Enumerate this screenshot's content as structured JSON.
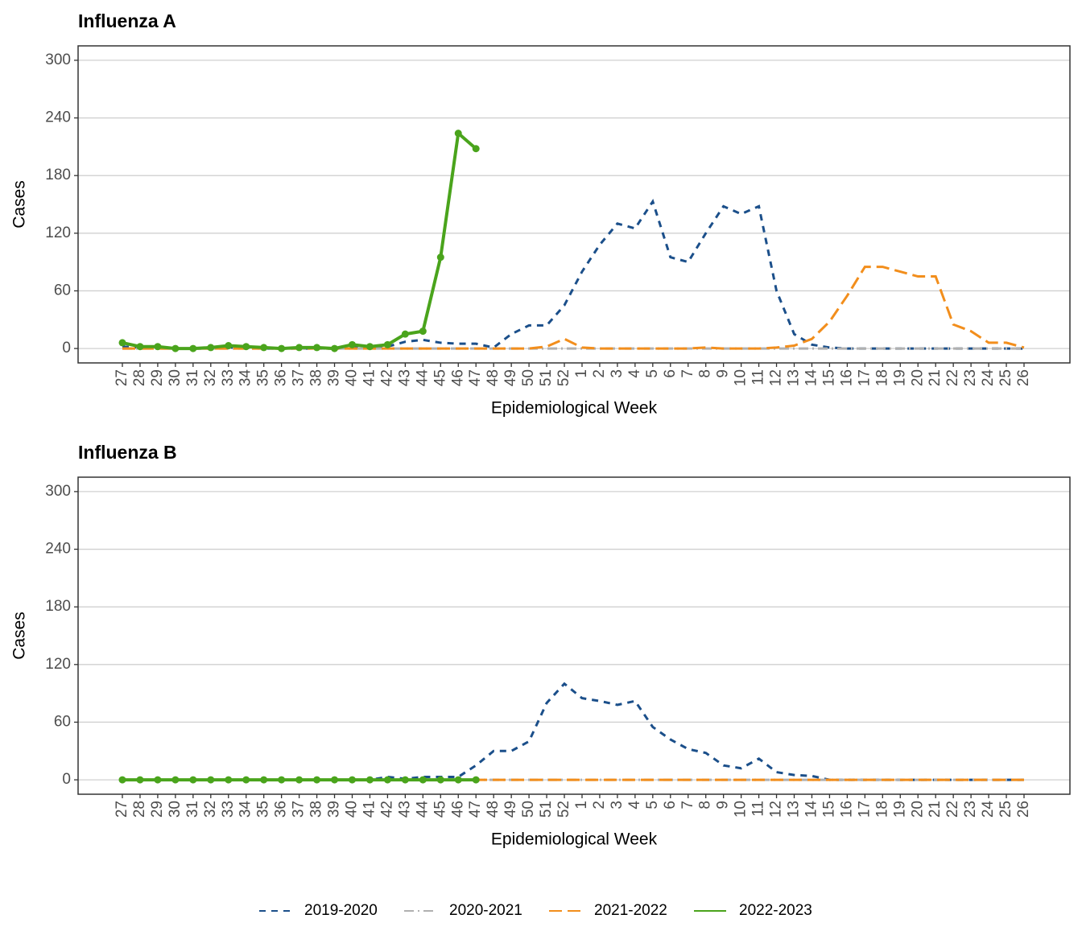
{
  "chart_data": [
    {
      "type": "line",
      "title": "Influenza A",
      "x_label": "Epidemiological Week",
      "y_label": "Cases",
      "categories": [
        "27",
        "28",
        "29",
        "30",
        "31",
        "32",
        "33",
        "34",
        "35",
        "36",
        "37",
        "38",
        "39",
        "40",
        "41",
        "42",
        "43",
        "44",
        "45",
        "46",
        "47",
        "48",
        "49",
        "50",
        "51",
        "52",
        "1",
        "2",
        "3",
        "4",
        "5",
        "6",
        "7",
        "8",
        "9",
        "10",
        "11",
        "12",
        "13",
        "14",
        "15",
        "16",
        "17",
        "18",
        "19",
        "20",
        "21",
        "22",
        "23",
        "24",
        "25",
        "26"
      ],
      "ylim": [
        -15,
        315
      ],
      "yticks": [
        0,
        60,
        120,
        180,
        240,
        300
      ],
      "grid": true,
      "legend": "bottom",
      "series": [
        {
          "name": "2019-2020",
          "color": "#1b4f8a",
          "linetype": "dashed",
          "values": [
            2,
            1,
            1,
            0,
            0,
            0,
            1,
            1,
            0,
            0,
            0,
            0,
            0,
            1,
            1,
            2,
            7,
            9,
            6,
            5,
            5,
            1,
            15,
            24,
            24,
            45,
            80,
            108,
            130,
            125,
            153,
            95,
            90,
            120,
            148,
            140,
            148,
            60,
            15,
            4,
            1,
            0,
            0,
            0,
            0,
            0,
            0,
            0,
            0,
            0,
            0,
            0
          ]
        },
        {
          "name": "2020-2021",
          "color": "#b0b0b0",
          "linetype": "dotdash",
          "values": [
            0,
            0,
            0,
            0,
            0,
            0,
            0,
            0,
            0,
            0,
            0,
            0,
            0,
            0,
            0,
            0,
            0,
            0,
            0,
            0,
            0,
            0,
            0,
            0,
            0,
            0,
            0,
            0,
            0,
            0,
            0,
            0,
            0,
            0,
            0,
            0,
            0,
            0,
            0,
            0,
            0,
            0,
            0,
            0,
            0,
            0,
            0,
            0,
            0,
            0,
            0,
            0
          ]
        },
        {
          "name": "2021-2022",
          "color": "#f28e1c",
          "linetype": "longdash",
          "values": [
            0,
            0,
            0,
            0,
            0,
            0,
            0,
            0,
            0,
            0,
            0,
            0,
            0,
            0,
            0,
            0,
            0,
            0,
            0,
            0,
            0,
            0,
            0,
            0,
            2,
            10,
            1,
            0,
            0,
            0,
            0,
            0,
            0,
            1,
            0,
            0,
            0,
            1,
            3,
            10,
            28,
            55,
            85,
            85,
            80,
            75,
            75,
            25,
            18,
            6,
            6,
            1
          ]
        },
        {
          "name": "2022-2023",
          "color": "#4aa41c",
          "linetype": "solid",
          "markers": true,
          "values": [
            6,
            2,
            2,
            0,
            0,
            1,
            3,
            2,
            1,
            0,
            1,
            1,
            0,
            4,
            2,
            4,
            15,
            18,
            95,
            224,
            208,
            null,
            null,
            null,
            null,
            null,
            null,
            null,
            null,
            null,
            null,
            null,
            null,
            null,
            null,
            null,
            null,
            null,
            null,
            null,
            null,
            null,
            null,
            null,
            null,
            null,
            null,
            null,
            null,
            null,
            null,
            null
          ]
        }
      ]
    },
    {
      "type": "line",
      "title": "Influenza B",
      "x_label": "Epidemiological Week",
      "y_label": "Cases",
      "categories": [
        "27",
        "28",
        "29",
        "30",
        "31",
        "32",
        "33",
        "34",
        "35",
        "36",
        "37",
        "38",
        "39",
        "40",
        "41",
        "42",
        "43",
        "44",
        "45",
        "46",
        "47",
        "48",
        "49",
        "50",
        "51",
        "52",
        "1",
        "2",
        "3",
        "4",
        "5",
        "6",
        "7",
        "8",
        "9",
        "10",
        "11",
        "12",
        "13",
        "14",
        "15",
        "16",
        "17",
        "18",
        "19",
        "20",
        "21",
        "22",
        "23",
        "24",
        "25",
        "26"
      ],
      "ylim": [
        -15,
        315
      ],
      "yticks": [
        0,
        60,
        120,
        180,
        240,
        300
      ],
      "grid": true,
      "series": [
        {
          "name": "2019-2020",
          "color": "#1b4f8a",
          "linetype": "dashed",
          "values": [
            0,
            0,
            0,
            0,
            0,
            0,
            0,
            0,
            0,
            0,
            0,
            0,
            0,
            0,
            0,
            3,
            1,
            3,
            3,
            3,
            15,
            30,
            30,
            40,
            80,
            100,
            85,
            82,
            78,
            82,
            55,
            42,
            32,
            28,
            15,
            12,
            22,
            8,
            5,
            4,
            0,
            0,
            0,
            0,
            0,
            0,
            0,
            0,
            0,
            0,
            0,
            0
          ]
        },
        {
          "name": "2020-2021",
          "color": "#b0b0b0",
          "linetype": "dotdash",
          "values": [
            0,
            0,
            0,
            0,
            0,
            0,
            0,
            0,
            0,
            0,
            0,
            0,
            0,
            0,
            0,
            0,
            0,
            0,
            0,
            0,
            0,
            0,
            0,
            0,
            0,
            0,
            0,
            0,
            0,
            0,
            0,
            0,
            0,
            0,
            0,
            0,
            0,
            0,
            0,
            0,
            0,
            0,
            0,
            0,
            0,
            0,
            0,
            0,
            0,
            0,
            0,
            0
          ]
        },
        {
          "name": "2021-2022",
          "color": "#f28e1c",
          "linetype": "longdash",
          "values": [
            0,
            0,
            0,
            0,
            0,
            0,
            0,
            0,
            0,
            0,
            0,
            0,
            0,
            0,
            0,
            0,
            0,
            0,
            0,
            0,
            0,
            0,
            0,
            0,
            0,
            0,
            0,
            0,
            0,
            0,
            0,
            0,
            0,
            0,
            0,
            0,
            0,
            0,
            0,
            0,
            0,
            0,
            0,
            0,
            0,
            0,
            0,
            0,
            0,
            0,
            0,
            0
          ]
        },
        {
          "name": "2022-2023",
          "color": "#4aa41c",
          "linetype": "solid",
          "markers": true,
          "values": [
            0,
            0,
            0,
            0,
            0,
            0,
            0,
            0,
            0,
            0,
            0,
            0,
            0,
            0,
            0,
            0,
            0,
            0,
            0,
            0,
            0,
            null,
            null,
            null,
            null,
            null,
            null,
            null,
            null,
            null,
            null,
            null,
            null,
            null,
            null,
            null,
            null,
            null,
            null,
            null,
            null,
            null,
            null,
            null,
            null,
            null,
            null,
            null,
            null,
            null,
            null,
            null
          ]
        }
      ]
    }
  ]
}
